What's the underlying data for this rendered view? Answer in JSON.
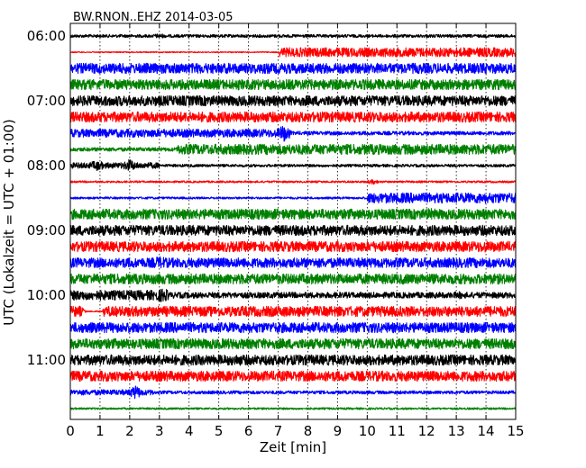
{
  "chart_data": {
    "type": "line",
    "title": "BW.RNON..EHZ 2014-03-05",
    "xlabel": "Zeit  [min]",
    "ylabel": "UTC (Lokalzeit = UTC + 01:00)",
    "xlim": [
      0,
      15
    ],
    "x_ticks": [
      "0",
      "1",
      "2",
      "3",
      "4",
      "5",
      "6",
      "7",
      "8",
      "9",
      "10",
      "11",
      "12",
      "13",
      "14",
      "15"
    ],
    "y_ticks": [
      "06:00",
      "07:00",
      "08:00",
      "09:00",
      "10:00",
      "11:00"
    ],
    "y_tick_minutes": [
      360,
      420,
      480,
      540,
      600,
      660
    ],
    "row_interval_min": 15,
    "grid": "vertical dotted at each minute",
    "series_colors": [
      "#000000",
      "#ff0000",
      "#0000ff",
      "#008000"
    ],
    "series": [
      {
        "start": "06:00",
        "color": "#000000",
        "amplitude": 0.28,
        "events": [
          {
            "t": 3.0,
            "amp": 0.45
          }
        ]
      },
      {
        "start": "06:15",
        "color": "#ff0000",
        "amplitude": 0.1,
        "events": [],
        "step": {
          "t": 7.05,
          "amp_after": 0.85
        }
      },
      {
        "start": "06:30",
        "color": "#0000ff",
        "amplitude": 0.95,
        "events": []
      },
      {
        "start": "06:45",
        "color": "#008000",
        "amplitude": 0.95,
        "events": []
      },
      {
        "start": "07:00",
        "color": "#000000",
        "amplitude": 0.95,
        "events": []
      },
      {
        "start": "07:15",
        "color": "#ff0000",
        "amplitude": 0.95,
        "events": []
      },
      {
        "start": "07:30",
        "color": "#0000ff",
        "amplitude": 0.75,
        "events": [
          {
            "t": 7.2,
            "amp": 1.6
          }
        ],
        "step": {
          "t": 7.4,
          "amp_after": 0.35
        }
      },
      {
        "start": "07:45",
        "color": "#008000",
        "amplitude": 0.35,
        "events": [],
        "step": {
          "t": 3.6,
          "amp_after": 0.95
        }
      },
      {
        "start": "08:00",
        "color": "#000000",
        "amplitude": 0.55,
        "events": [
          {
            "t": 0.9,
            "amp": 1.0
          },
          {
            "t": 2.0,
            "amp": 1.2
          }
        ],
        "step": {
          "t": 3.0,
          "amp_after": 0.25
        }
      },
      {
        "start": "08:15",
        "color": "#ff0000",
        "amplitude": 0.18,
        "events": [
          {
            "t": 10.2,
            "amp": 0.5
          }
        ]
      },
      {
        "start": "08:30",
        "color": "#0000ff",
        "amplitude": 0.2,
        "events": [],
        "step": {
          "t": 10.0,
          "amp_after": 0.95
        }
      },
      {
        "start": "08:45",
        "color": "#008000",
        "amplitude": 0.95,
        "events": [
          {
            "t": 12.1,
            "amp": 1.1
          }
        ]
      },
      {
        "start": "09:00",
        "color": "#000000",
        "amplitude": 0.95,
        "events": []
      },
      {
        "start": "09:15",
        "color": "#ff0000",
        "amplitude": 0.95,
        "events": [
          {
            "t": 13.9,
            "amp": 1.1
          }
        ]
      },
      {
        "start": "09:30",
        "color": "#0000ff",
        "amplitude": 0.9,
        "events": [
          {
            "t": 3.0,
            "amp": 1.2
          }
        ]
      },
      {
        "start": "09:45",
        "color": "#008000",
        "amplitude": 0.95,
        "events": []
      },
      {
        "start": "10:00",
        "color": "#000000",
        "amplitude": 0.55,
        "events": [
          {
            "t": 3.1,
            "amp": 1.3
          },
          {
            "t": 13.1,
            "amp": 0.7
          }
        ],
        "step": {
          "t": 0.0,
          "amp_after": 0.9,
          "until": 3.3
        }
      },
      {
        "start": "10:15",
        "color": "#ff0000",
        "amplitude": 0.95,
        "events": [
          {
            "t": 0.3,
            "amp": 1.1
          },
          {
            "t": 3.0,
            "amp": 1.0
          }
        ],
        "gap": {
          "from": 0.2,
          "to": 1.1
        }
      },
      {
        "start": "10:30",
        "color": "#0000ff",
        "amplitude": 0.95,
        "events": []
      },
      {
        "start": "10:45",
        "color": "#008000",
        "amplitude": 0.95,
        "events": []
      },
      {
        "start": "11:00",
        "color": "#000000",
        "amplitude": 0.95,
        "events": [
          {
            "t": 5.6,
            "amp": 1.1
          }
        ]
      },
      {
        "start": "11:15",
        "color": "#ff0000",
        "amplitude": 0.95,
        "events": []
      },
      {
        "start": "11:30",
        "color": "#0000ff",
        "amplitude": 0.5,
        "events": [
          {
            "t": 2.2,
            "amp": 1.3
          }
        ],
        "step": {
          "t": 2.8,
          "amp_after": 0.3
        }
      },
      {
        "start": "11:45",
        "color": "#008000",
        "amplitude": 0.18,
        "events": []
      }
    ]
  }
}
